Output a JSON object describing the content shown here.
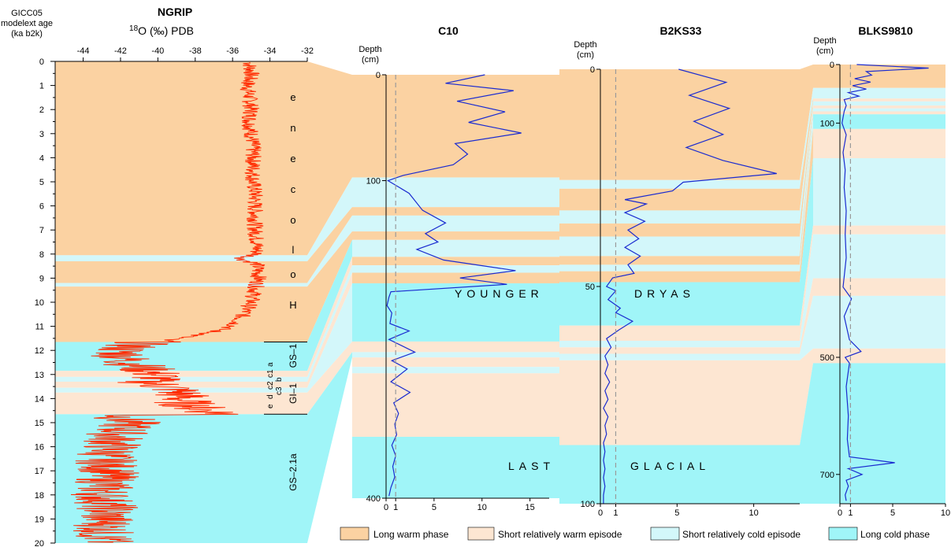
{
  "colors": {
    "long_warm": "#fbd2a2",
    "short_warm": "#fde6d2",
    "short_cold": "#d3f7fa",
    "long_cold": "#a0f5f8",
    "ngrip_line": "#ff2a00",
    "core_line": "#1a2bd0",
    "threshold_line": "#9a9a9a"
  },
  "left_axis": {
    "label_lines": [
      "GICC05",
      "modelext age",
      "(ka b2k)"
    ],
    "ticks": [
      "0",
      "1",
      "2",
      "3",
      "4",
      "5",
      "6",
      "7",
      "8",
      "9",
      "10",
      "11",
      "12",
      "13",
      "14",
      "15",
      "16",
      "17",
      "18",
      "19",
      "20"
    ]
  },
  "ngrip": {
    "title": "NGRIP",
    "xlabel_sup": "18",
    "xlabel_rest": "O (‰) PDB",
    "xticks": [
      "-44",
      "-42",
      "-40",
      "-38",
      "-36",
      "-34",
      "-32"
    ],
    "holocene_letters": [
      "e",
      "n",
      "e",
      "c",
      "o",
      "l",
      "o",
      "H"
    ],
    "gs1": "GS–1",
    "gi1": "GI–1",
    "gi_sub": [
      "e",
      "d",
      "c2",
      "c1",
      "a",
      "c3",
      "b"
    ],
    "gs21a": "GS–2.1a"
  },
  "chart_data": [
    {
      "type": "line",
      "title": "NGRIP",
      "xlabel": "18O (‰) PDB",
      "ylabel": "GICC05 modelext age (ka b2k)",
      "xlim": [
        -45.5,
        -32
      ],
      "ylim": [
        0,
        20
      ],
      "series": [
        {
          "age": [
            0.05,
            0.5,
            1,
            1.5,
            2,
            2.5,
            3,
            3.5,
            4,
            4.5,
            5,
            5.5,
            6,
            6.5,
            7,
            7.5,
            8,
            8.2,
            8.4,
            9,
            9.5,
            10,
            10.5,
            11,
            11.3,
            11.6,
            11.7,
            12,
            12.4,
            12.8,
            12.9,
            13.1,
            13.3,
            13.6,
            13.9,
            14.2,
            14.5,
            14.65,
            14.7,
            15,
            15.5,
            16,
            16.5,
            17,
            17.5,
            18,
            18.5,
            19,
            19.5,
            20
          ],
          "d18O": [
            -35.1,
            -35.0,
            -35.2,
            -35.1,
            -35.0,
            -35.1,
            -35.0,
            -34.9,
            -34.9,
            -34.9,
            -34.9,
            -34.8,
            -34.8,
            -34.8,
            -34.8,
            -34.7,
            -34.7,
            -35.6,
            -34.7,
            -34.6,
            -34.8,
            -35.0,
            -35.4,
            -36.0,
            -37.4,
            -39.8,
            -41.0,
            -42.0,
            -41.8,
            -40.6,
            -40.4,
            -39.9,
            -40.7,
            -39.1,
            -38.7,
            -38.6,
            -37.4,
            -36.3,
            -42.0,
            -41.5,
            -42.2,
            -42.5,
            -42.8,
            -42.6,
            -42.8,
            -43.0,
            -42.7,
            -42.8,
            -42.9,
            -42.9
          ]
        }
      ],
      "phases": [
        {
          "from": 0,
          "to": 8.05,
          "type": "long_warm"
        },
        {
          "from": 8.05,
          "to": 8.3,
          "type": "short_cold"
        },
        {
          "from": 8.3,
          "to": 9.2,
          "type": "long_warm"
        },
        {
          "from": 9.2,
          "to": 9.35,
          "type": "short_cold"
        },
        {
          "from": 9.35,
          "to": 11.65,
          "type": "long_warm"
        },
        {
          "from": 11.65,
          "to": 12.85,
          "type": "long_cold"
        },
        {
          "from": 12.85,
          "to": 13.1,
          "type": "short_warm"
        },
        {
          "from": 13.1,
          "to": 13.3,
          "type": "short_cold"
        },
        {
          "from": 13.3,
          "to": 13.55,
          "type": "short_warm"
        },
        {
          "from": 13.55,
          "to": 13.75,
          "type": "short_cold"
        },
        {
          "from": 13.75,
          "to": 14.65,
          "type": "short_warm"
        },
        {
          "from": 14.65,
          "to": 20,
          "type": "long_cold"
        }
      ]
    },
    {
      "type": "line",
      "title": "C10",
      "ylabel": "Depth (cm)",
      "xlim": [
        0,
        17
      ],
      "ylim": [
        0,
        400
      ],
      "threshold": 1,
      "xticks": [
        "0",
        "1",
        "5",
        "10",
        "15"
      ],
      "yticks": [
        "0",
        "100",
        "400"
      ],
      "series": [
        {
          "depth": [
            0,
            8,
            15,
            25,
            35,
            45,
            55,
            65,
            75,
            85,
            95,
            100,
            112,
            128,
            140,
            150,
            158,
            165,
            175,
            185,
            192,
            198,
            205,
            210,
            218,
            225,
            235,
            242,
            250,
            262,
            270,
            278,
            290,
            300,
            310,
            320,
            330,
            340,
            350,
            360,
            370,
            380,
            390,
            398
          ],
          "value": [
            10.3,
            6.2,
            13.3,
            7.4,
            12.4,
            8.6,
            14.1,
            7.2,
            8.5,
            7.0,
            1.8,
            0.2,
            2.4,
            3.8,
            6.2,
            4.1,
            5.4,
            3.2,
            6.0,
            13.5,
            7.7,
            12.6,
            0.5,
            0.3,
            0.1,
            0.6,
            0.4,
            2.4,
            0.3,
            3.0,
            0.6,
            2.2,
            0.5,
            2.5,
            0.8,
            1.3,
            0.9,
            1.1,
            0.6,
            1.0,
            0.7,
            0.9,
            0.5,
            0.3
          ]
        }
      ],
      "phases": [
        {
          "from": 0,
          "to": 97,
          "type": "long_warm"
        },
        {
          "from": 97,
          "to": 125,
          "type": "short_cold"
        },
        {
          "from": 125,
          "to": 133,
          "type": "long_warm"
        },
        {
          "from": 133,
          "to": 148,
          "type": "short_cold"
        },
        {
          "from": 148,
          "to": 156,
          "type": "long_warm"
        },
        {
          "from": 156,
          "to": 172,
          "type": "short_cold"
        },
        {
          "from": 172,
          "to": 180,
          "type": "long_warm"
        },
        {
          "from": 180,
          "to": 187,
          "type": "short_cold"
        },
        {
          "from": 187,
          "to": 197,
          "type": "long_warm"
        },
        {
          "from": 197,
          "to": 252,
          "type": "long_cold"
        },
        {
          "from": 252,
          "to": 262,
          "type": "short_warm"
        },
        {
          "from": 262,
          "to": 267,
          "type": "short_cold"
        },
        {
          "from": 267,
          "to": 276,
          "type": "short_warm"
        },
        {
          "from": 276,
          "to": 282,
          "type": "short_cold"
        },
        {
          "from": 282,
          "to": 342,
          "type": "short_warm"
        },
        {
          "from": 342,
          "to": 400,
          "type": "long_cold"
        }
      ]
    },
    {
      "type": "line",
      "title": "B2KS33",
      "ylabel": "Depth (cm)",
      "xlim": [
        0,
        13
      ],
      "ylim": [
        0,
        100
      ],
      "threshold": 1,
      "xticks": [
        "0",
        "1",
        "5",
        "10"
      ],
      "yticks": [
        "0",
        "50",
        "100"
      ],
      "series": [
        {
          "depth": [
            0,
            3,
            6,
            9,
            12,
            15,
            18,
            21,
            24,
            26,
            28,
            30,
            31,
            33,
            35,
            37,
            39,
            41,
            43,
            45,
            47,
            48,
            50,
            51,
            53,
            55,
            56,
            58,
            60,
            62,
            64,
            66,
            68,
            70,
            72,
            74,
            76,
            78,
            80,
            82,
            84,
            86,
            88,
            90,
            92,
            94,
            96,
            98,
            100
          ],
          "value": [
            5.1,
            8.2,
            5.8,
            8.4,
            6.1,
            8.0,
            5.6,
            8.0,
            11.5,
            5.4,
            4.7,
            1.6,
            3.0,
            1.6,
            2.9,
            1.8,
            2.5,
            1.6,
            2.6,
            1.8,
            2.2,
            0.8,
            0.4,
            1.0,
            0.5,
            1.3,
            1.0,
            2.1,
            1.2,
            0.4,
            0.7,
            0.3,
            0.5,
            0.3,
            0.6,
            0.3,
            0.5,
            0.2,
            0.5,
            0.3,
            0.4,
            0.2,
            0.3,
            0.2,
            0.3,
            0.2,
            0.3,
            0.2,
            0.2
          ]
        }
      ],
      "phases": [
        {
          "from": 0,
          "to": 25.5,
          "type": "long_warm"
        },
        {
          "from": 25.5,
          "to": 27.5,
          "type": "short_cold"
        },
        {
          "from": 27.5,
          "to": 32.5,
          "type": "long_warm"
        },
        {
          "from": 32.5,
          "to": 35.5,
          "type": "short_cold"
        },
        {
          "from": 35.5,
          "to": 38.5,
          "type": "long_warm"
        },
        {
          "from": 38.5,
          "to": 43,
          "type": "short_cold"
        },
        {
          "from": 43,
          "to": 45,
          "type": "long_warm"
        },
        {
          "from": 45,
          "to": 46.5,
          "type": "short_cold"
        },
        {
          "from": 46.5,
          "to": 49,
          "type": "long_warm"
        },
        {
          "from": 49,
          "to": 59,
          "type": "long_cold"
        },
        {
          "from": 59,
          "to": 62.5,
          "type": "short_warm"
        },
        {
          "from": 62.5,
          "to": 64,
          "type": "short_cold"
        },
        {
          "from": 64,
          "to": 65.5,
          "type": "short_warm"
        },
        {
          "from": 65.5,
          "to": 67,
          "type": "short_cold"
        },
        {
          "from": 67,
          "to": 86.5,
          "type": "short_warm"
        },
        {
          "from": 86.5,
          "to": 100,
          "type": "long_cold"
        }
      ]
    },
    {
      "type": "line",
      "title": "BLKS9810",
      "ylabel": "Depth (cm)",
      "xlim": [
        0,
        10
      ],
      "ylim": [
        0,
        750
      ],
      "threshold": 1,
      "xticks": [
        "0",
        "1",
        "5",
        "10"
      ],
      "yticks": [
        "0",
        "100",
        "500",
        "700"
      ],
      "series": [
        {
          "depth": [
            0,
            6,
            12,
            18,
            24,
            30,
            36,
            42,
            48,
            54,
            60,
            70,
            80,
            100,
            120,
            150,
            180,
            210,
            250,
            290,
            330,
            380,
            400,
            430,
            470,
            490,
            500,
            510,
            550,
            600,
            640,
            670,
            680,
            690,
            700,
            710,
            720,
            735,
            745
          ],
          "value": [
            1.6,
            8.4,
            2.5,
            3.0,
            1.4,
            2.9,
            1.2,
            2.5,
            0.8,
            1.8,
            0.4,
            0.6,
            0.4,
            0.2,
            0.6,
            0.3,
            0.5,
            0.4,
            0.6,
            0.5,
            0.6,
            0.3,
            1.1,
            0.4,
            0.9,
            2.0,
            0.5,
            0.9,
            0.6,
            0.8,
            0.7,
            0.9,
            5.2,
            0.8,
            2.1,
            0.6,
            0.8,
            0.5,
            0.6
          ]
        }
      ],
      "phases": [
        {
          "from": 0,
          "to": 40,
          "type": "long_warm"
        },
        {
          "from": 40,
          "to": 58,
          "type": "short_cold"
        },
        {
          "from": 58,
          "to": 63,
          "type": "short_warm"
        },
        {
          "from": 63,
          "to": 70,
          "type": "short_cold"
        },
        {
          "from": 70,
          "to": 75,
          "type": "short_warm"
        },
        {
          "from": 75,
          "to": 80,
          "type": "short_cold"
        },
        {
          "from": 80,
          "to": 85,
          "type": "short_warm"
        },
        {
          "from": 85,
          "to": 110,
          "type": "long_cold"
        },
        {
          "from": 110,
          "to": 160,
          "type": "short_warm"
        },
        {
          "from": 160,
          "to": 275,
          "type": "short_cold"
        },
        {
          "from": 275,
          "to": 290,
          "type": "short_warm"
        },
        {
          "from": 290,
          "to": 365,
          "type": "short_cold"
        },
        {
          "from": 365,
          "to": 395,
          "type": "short_warm"
        },
        {
          "from": 395,
          "to": 485,
          "type": "short_cold"
        },
        {
          "from": 485,
          "to": 510,
          "type": "short_warm"
        },
        {
          "from": 510,
          "to": 750,
          "type": "long_cold"
        }
      ]
    }
  ],
  "cores": [
    {
      "title": "C10",
      "depth_label_lines": [
        "Depth",
        "(cm)"
      ]
    },
    {
      "title": "B2KS33",
      "depth_label_lines": [
        "Depth",
        "(cm)"
      ]
    },
    {
      "title": "BLKS9810",
      "depth_label_lines": [
        "Depth",
        "(cm)"
      ]
    }
  ],
  "band_labels": {
    "younger": "YOUNGER",
    "dryas": "DRYAS",
    "last": "LAST",
    "glacial": "GLACIAL"
  },
  "legend": [
    {
      "label": "Long warm phase",
      "type": "long_warm"
    },
    {
      "label": "Short relatively warm episode",
      "type": "short_warm"
    },
    {
      "label": "Short relatively cold episode",
      "type": "short_cold"
    },
    {
      "label": "Long cold phase",
      "type": "long_cold"
    }
  ]
}
